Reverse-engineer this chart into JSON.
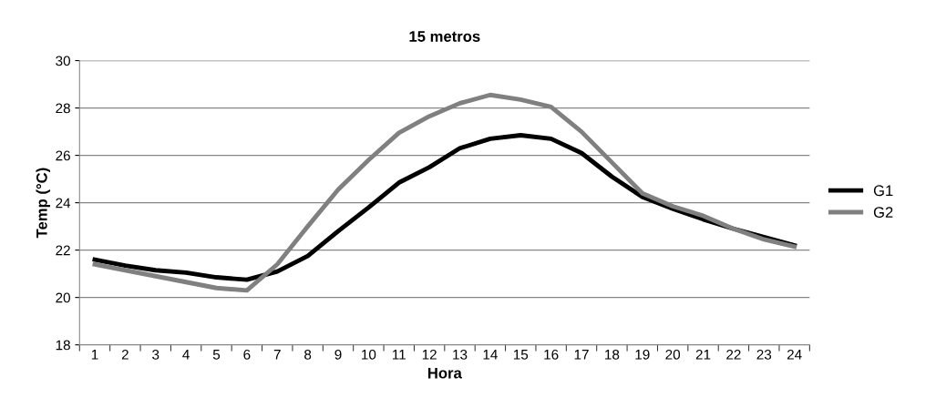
{
  "chart_data": {
    "type": "line",
    "title": "15 metros",
    "xlabel": "Hora",
    "ylabel": "Temp (°C)",
    "categories": [
      "1",
      "2",
      "3",
      "4",
      "5",
      "6",
      "7",
      "8",
      "9",
      "10",
      "11",
      "12",
      "13",
      "14",
      "15",
      "16",
      "17",
      "18",
      "19",
      "20",
      "21",
      "22",
      "23",
      "24"
    ],
    "series": [
      {
        "name": "G1",
        "color": "#000000",
        "values": [
          21.6,
          21.35,
          21.15,
          21.05,
          20.85,
          20.75,
          21.1,
          21.75,
          22.8,
          23.8,
          24.85,
          25.5,
          26.3,
          26.7,
          26.85,
          26.7,
          26.1,
          25.1,
          24.25,
          23.75,
          23.3,
          22.9,
          22.55,
          22.2
        ]
      },
      {
        "name": "G2",
        "color": "#808080",
        "values": [
          21.4,
          21.15,
          20.9,
          20.65,
          20.4,
          20.3,
          21.4,
          23.0,
          24.55,
          25.8,
          26.95,
          27.65,
          28.2,
          28.55,
          28.35,
          28.05,
          27.0,
          25.7,
          24.4,
          23.85,
          23.45,
          22.9,
          22.45,
          22.15
        ]
      }
    ],
    "ylim": [
      18,
      30
    ],
    "yticks": [
      18,
      20,
      22,
      24,
      26,
      28,
      30
    ],
    "grid": "y",
    "legend": "right",
    "marker": "none",
    "line_style": "solid"
  }
}
